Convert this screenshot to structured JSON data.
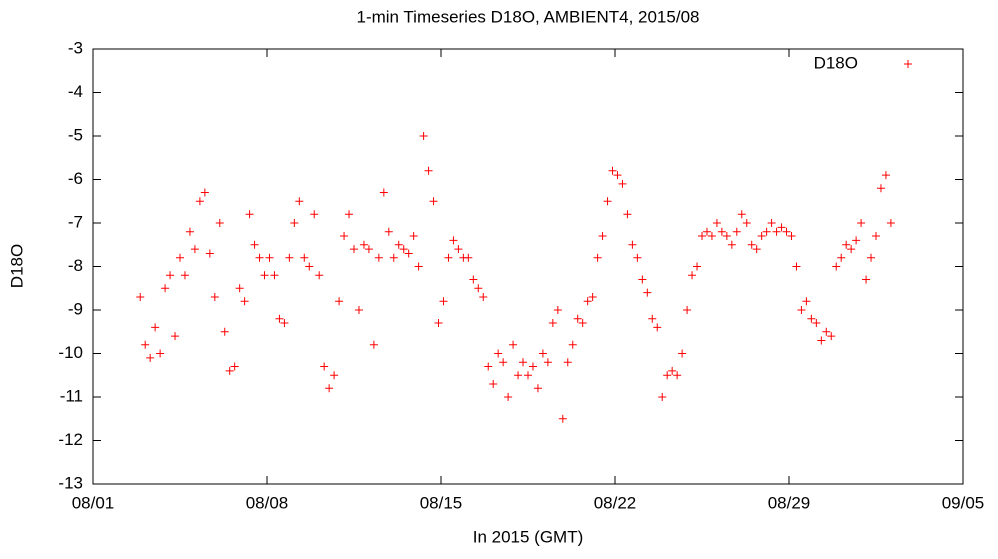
{
  "chart_data": {
    "type": "scatter",
    "title": "1-min Timeseries D18O, AMBIENT4, 2015/08",
    "x_label": "In 2015 (GMT)",
    "y_label": "D18O",
    "legend": "top-right",
    "grid": false,
    "xlim": [
      1,
      36
    ],
    "xticks": [
      {
        "value": 1,
        "label": "08/01"
      },
      {
        "value": 8,
        "label": "08/08"
      },
      {
        "value": 15,
        "label": "08/15"
      },
      {
        "value": 22,
        "label": "08/22"
      },
      {
        "value": 29,
        "label": "08/29"
      },
      {
        "value": 36,
        "label": "09/05"
      }
    ],
    "ylim": [
      -13,
      -3
    ],
    "yticks": [
      -13,
      -12,
      -11,
      -10,
      -9,
      -8,
      -7,
      -6,
      -5,
      -4,
      -3
    ],
    "x": [
      2.9,
      3.1,
      3.3,
      3.5,
      3.7,
      3.9,
      4.1,
      4.3,
      4.5,
      4.7,
      4.9,
      5.1,
      5.3,
      5.5,
      5.7,
      5.9,
      6.1,
      6.3,
      6.5,
      6.7,
      6.9,
      7.1,
      7.3,
      7.5,
      7.7,
      7.9,
      8.1,
      8.3,
      8.5,
      8.7,
      8.9,
      9.1,
      9.3,
      9.5,
      9.7,
      9.9,
      10.1,
      10.3,
      10.5,
      10.7,
      10.9,
      11.1,
      11.3,
      11.5,
      11.7,
      11.9,
      12.1,
      12.3,
      12.5,
      12.7,
      12.9,
      13.1,
      13.3,
      13.5,
      13.7,
      13.9,
      14.1,
      14.3,
      14.5,
      14.7,
      14.9,
      15.1,
      15.3,
      15.5,
      15.7,
      15.9,
      16.1,
      16.3,
      16.5,
      16.7,
      16.9,
      17.1,
      17.3,
      17.5,
      17.7,
      17.9,
      18.1,
      18.3,
      18.5,
      18.7,
      18.9,
      19.1,
      19.3,
      19.5,
      19.7,
      19.9,
      20.1,
      20.3,
      20.5,
      20.7,
      20.9,
      21.1,
      21.3,
      21.5,
      21.7,
      21.9,
      22.1,
      22.3,
      22.5,
      22.7,
      22.9,
      23.1,
      23.3,
      23.5,
      23.7,
      23.9,
      24.1,
      24.3,
      24.5,
      24.7,
      24.9,
      25.1,
      25.3,
      25.5,
      25.7,
      25.9,
      26.1,
      26.3,
      26.5,
      26.7,
      26.9,
      27.1,
      27.3,
      27.5,
      27.7,
      27.9,
      28.1,
      28.3,
      28.5,
      28.7,
      28.9,
      29.1,
      29.3,
      29.5,
      29.7,
      29.9,
      30.1,
      30.3,
      30.5,
      30.7,
      30.9,
      31.1,
      31.3,
      31.5,
      31.7,
      31.9,
      32.1,
      32.3,
      32.5,
      32.7,
      32.9,
      33.1
    ],
    "series": [
      {
        "name": "D18O",
        "color": "#ff0000",
        "values": [
          -8.7,
          -9.8,
          -10.1,
          -9.4,
          -10.0,
          -8.5,
          -8.2,
          -9.6,
          -7.8,
          -8.2,
          -7.2,
          -7.6,
          -6.5,
          -6.3,
          -7.7,
          -8.7,
          -7.0,
          -9.5,
          -10.4,
          -10.3,
          -8.5,
          -8.8,
          -6.8,
          -7.5,
          -7.8,
          -8.2,
          -7.8,
          -8.2,
          -9.2,
          -9.3,
          -7.8,
          -7.0,
          -6.5,
          -7.8,
          -8.0,
          -6.8,
          -8.2,
          -10.3,
          -10.8,
          -10.5,
          -8.8,
          -7.3,
          -6.8,
          -7.6,
          -9.0,
          -7.5,
          -7.6,
          -9.8,
          -7.8,
          -6.3,
          -7.2,
          -7.8,
          -7.5,
          -7.6,
          -7.7,
          -7.3,
          -8.0,
          -5.0,
          -5.8,
          -6.5,
          -9.3,
          -8.8,
          -7.8,
          -7.4,
          -7.6,
          -7.8,
          -7.8,
          -8.3,
          -8.5,
          -8.7,
          -10.3,
          -10.7,
          -10.0,
          -10.2,
          -11.0,
          -9.8,
          -10.5,
          -10.2,
          -10.5,
          -10.3,
          -10.8,
          -10.0,
          -10.2,
          -9.3,
          -9.0,
          -11.5,
          -10.2,
          -9.8,
          -9.2,
          -9.3,
          -8.8,
          -8.7,
          -7.8,
          -7.3,
          -6.5,
          -5.8,
          -5.9,
          -6.1,
          -6.8,
          -7.5,
          -7.8,
          -8.3,
          -8.6,
          -9.2,
          -9.4,
          -11.0,
          -10.5,
          -10.4,
          -10.5,
          -10.0,
          -9.0,
          -8.2,
          -8.0,
          -7.3,
          -7.2,
          -7.3,
          -7.0,
          -7.2,
          -7.3,
          -7.5,
          -7.2,
          -6.8,
          -7.0,
          -7.5,
          -7.6,
          -7.3,
          -7.2,
          -7.0,
          -7.2,
          -7.1,
          -7.2,
          -7.3,
          -8.0,
          -9.0,
          -8.8,
          -9.2,
          -9.3,
          -9.7,
          -9.5,
          -9.6,
          -8.0,
          -7.8,
          -7.5,
          -7.6,
          -7.4,
          -7.0,
          -8.3,
          -7.8,
          -7.3,
          -6.2,
          -5.9,
          -7.0
        ]
      }
    ]
  }
}
